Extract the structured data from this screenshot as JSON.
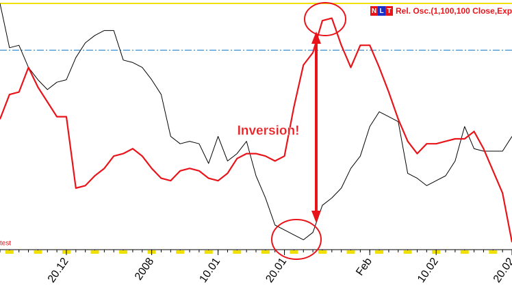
{
  "chart_data": {
    "type": "line",
    "legend": "Rel. Osc.(1,100,100 Close,Exp)",
    "logo": [
      "N",
      "L",
      "T"
    ],
    "label": "test",
    "annotation": "Inversion!",
    "categories": [
      null,
      null,
      null,
      null,
      null,
      null,
      null,
      "20.12",
      null,
      null,
      null,
      null,
      null,
      null,
      null,
      null,
      "2008",
      null,
      null,
      null,
      null,
      null,
      null,
      "10.01",
      null,
      null,
      null,
      null,
      null,
      null,
      "20.01",
      null,
      null,
      null,
      null,
      null,
      null,
      null,
      null,
      "Feb",
      null,
      null,
      null,
      null,
      null,
      null,
      "10.02",
      null,
      null,
      null,
      null,
      null,
      null,
      null,
      "20.02"
    ],
    "series": [
      {
        "color": "#000000",
        "values": [
          100,
          82,
          83,
          74,
          69,
          65,
          68,
          69,
          78,
          84,
          87,
          89,
          89,
          77,
          76,
          74,
          69,
          63,
          46,
          43,
          44,
          43,
          35,
          46,
          36,
          39,
          44,
          30,
          21,
          10,
          8,
          6,
          4,
          7,
          18,
          21,
          25,
          33,
          38,
          50,
          56,
          54,
          52,
          31,
          29,
          26,
          28,
          30,
          36,
          50,
          41,
          40,
          40,
          40,
          46
        ]
      },
      {
        "color": "#e8141a",
        "values": [
          53,
          63,
          64,
          74,
          66,
          60,
          54,
          54,
          25,
          26,
          30,
          33,
          38,
          39,
          41,
          38,
          33,
          29,
          28,
          32,
          33,
          32,
          29,
          28,
          31,
          37,
          39,
          39,
          38,
          36,
          38,
          58,
          75,
          80,
          93,
          94,
          83,
          74,
          83,
          83,
          74,
          64,
          53,
          44,
          39,
          43,
          43,
          44,
          45,
          45,
          48,
          41,
          32,
          23,
          3
        ]
      }
    ],
    "ylim": [
      0,
      100
    ],
    "hlines": [
      {
        "value": 100,
        "color": "#f0e000"
      },
      {
        "value": 81,
        "color": "#3a8fd0"
      }
    ]
  }
}
